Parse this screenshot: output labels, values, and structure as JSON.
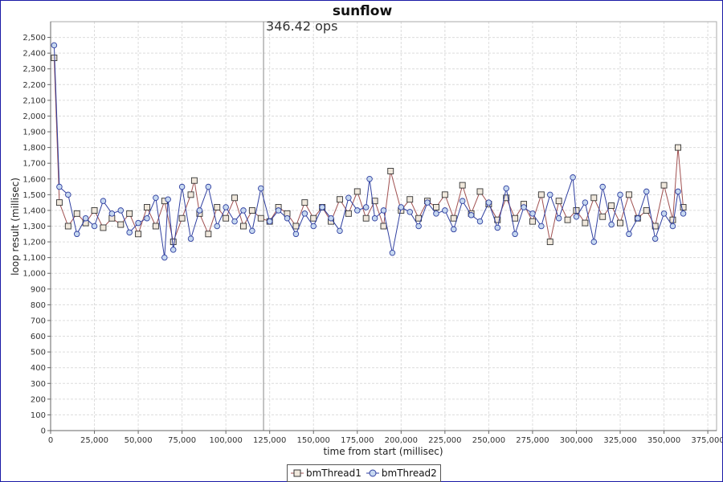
{
  "chart_data": {
    "type": "line",
    "title": "sunflow",
    "xlabel": "time from start (millisec)",
    "ylabel": "loop result (millisec)",
    "xlim": [
      0,
      380000
    ],
    "ylim": [
      0,
      2600
    ],
    "x_ticks": [
      "0",
      "25,000",
      "50,000",
      "75,000",
      "100,000",
      "125,000",
      "150,000",
      "175,000",
      "200,000",
      "225,000",
      "250,000",
      "275,000",
      "300,000",
      "325,000",
      "350,000",
      "375,000"
    ],
    "x_tick_values": [
      0,
      25000,
      50000,
      75000,
      100000,
      125000,
      150000,
      175000,
      200000,
      225000,
      250000,
      275000,
      300000,
      325000,
      350000,
      375000
    ],
    "y_ticks": [
      "0",
      "100",
      "200",
      "300",
      "400",
      "500",
      "600",
      "700",
      "800",
      "900",
      "1,000",
      "1,100",
      "1,200",
      "1,300",
      "1,400",
      "1,500",
      "1,600",
      "1,700",
      "1,800",
      "1,900",
      "2,000",
      "2,100",
      "2,200",
      "2,300",
      "2,400",
      "2,500"
    ],
    "y_tick_values": [
      0,
      100,
      200,
      300,
      400,
      500,
      600,
      700,
      800,
      900,
      1000,
      1100,
      1200,
      1300,
      1400,
      1500,
      1600,
      1700,
      1800,
      1900,
      2000,
      2100,
      2200,
      2300,
      2400,
      2500
    ],
    "grid": true,
    "legend_position": "bottom",
    "annotation": {
      "x": 121500,
      "label": "346.42 ops"
    },
    "series": [
      {
        "name": "bmThread1",
        "marker": "square",
        "line_color": "#a05050",
        "marker_fill": "#f0e8dc",
        "x": [
          2000,
          5000,
          10000,
          15000,
          20000,
          25000,
          30000,
          35000,
          40000,
          45000,
          50000,
          55000,
          60000,
          65000,
          70000,
          75000,
          80000,
          82000,
          85000,
          90000,
          95000,
          100000,
          105000,
          110000,
          115000,
          120000,
          125000,
          130000,
          135000,
          140000,
          145000,
          150000,
          155000,
          160000,
          165000,
          170000,
          175000,
          180000,
          185000,
          190000,
          194000,
          200000,
          205000,
          210000,
          215000,
          220000,
          225000,
          230000,
          235000,
          240000,
          245000,
          250000,
          255000,
          260000,
          265000,
          270000,
          275000,
          280000,
          285000,
          290000,
          295000,
          300000,
          305000,
          310000,
          315000,
          320000,
          325000,
          330000,
          335000,
          340000,
          345000,
          350000,
          355000,
          358000,
          361000
        ],
        "values": [
          2370,
          1450,
          1300,
          1380,
          1320,
          1400,
          1290,
          1350,
          1310,
          1380,
          1250,
          1420,
          1300,
          1460,
          1200,
          1350,
          1500,
          1590,
          1380,
          1250,
          1420,
          1350,
          1480,
          1300,
          1400,
          1350,
          1330,
          1420,
          1380,
          1300,
          1450,
          1350,
          1420,
          1330,
          1470,
          1380,
          1520,
          1350,
          1460,
          1300,
          1650,
          1400,
          1470,
          1350,
          1460,
          1420,
          1500,
          1350,
          1560,
          1380,
          1520,
          1440,
          1340,
          1480,
          1350,
          1440,
          1330,
          1500,
          1200,
          1460,
          1340,
          1400,
          1320,
          1480,
          1360,
          1430,
          1320,
          1500,
          1350,
          1400,
          1300,
          1560,
          1340,
          1800,
          1420
        ]
      },
      {
        "name": "bmThread2",
        "marker": "circle",
        "line_color": "#2f3fa0",
        "marker_fill": "#c6d8f0",
        "x": [
          2000,
          5000,
          10000,
          15000,
          20000,
          25000,
          30000,
          35000,
          40000,
          45000,
          50000,
          55000,
          60000,
          65000,
          67000,
          70000,
          75000,
          80000,
          85000,
          90000,
          95000,
          100000,
          105000,
          110000,
          115000,
          120000,
          125000,
          130000,
          135000,
          140000,
          145000,
          150000,
          155000,
          160000,
          165000,
          170000,
          175000,
          180000,
          182000,
          185000,
          190000,
          195000,
          200000,
          205000,
          210000,
          215000,
          220000,
          225000,
          230000,
          235000,
          240000,
          245000,
          250000,
          255000,
          260000,
          265000,
          270000,
          275000,
          280000,
          285000,
          290000,
          298000,
          300000,
          305000,
          310000,
          315000,
          320000,
          325000,
          330000,
          335000,
          340000,
          345000,
          350000,
          355000,
          358000,
          361000
        ],
        "values": [
          2450,
          1550,
          1500,
          1250,
          1350,
          1300,
          1460,
          1380,
          1400,
          1260,
          1320,
          1350,
          1480,
          1100,
          1470,
          1150,
          1550,
          1220,
          1400,
          1550,
          1300,
          1420,
          1330,
          1400,
          1270,
          1540,
          1330,
          1400,
          1350,
          1250,
          1380,
          1300,
          1420,
          1350,
          1270,
          1480,
          1400,
          1420,
          1600,
          1350,
          1400,
          1130,
          1420,
          1390,
          1300,
          1450,
          1380,
          1400,
          1280,
          1460,
          1370,
          1330,
          1450,
          1290,
          1540,
          1250,
          1420,
          1380,
          1300,
          1500,
          1350,
          1610,
          1360,
          1450,
          1200,
          1550,
          1310,
          1500,
          1250,
          1350,
          1520,
          1220,
          1380,
          1300,
          1520,
          1380
        ]
      }
    ]
  }
}
